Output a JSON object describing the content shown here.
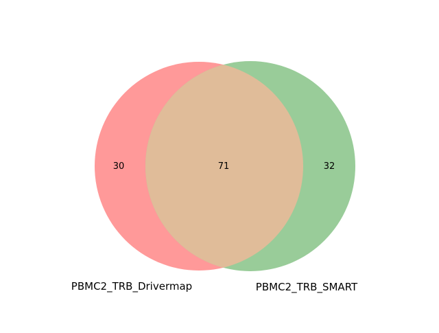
{
  "venn": {
    "sets": [
      {
        "label": "PBMC2_TRB_Drivermap",
        "color": "#ff9999"
      },
      {
        "label": "PBMC2_TRB_SMART",
        "color": "#99cc99"
      }
    ],
    "overlap_color": "#e0bc99",
    "counts": {
      "only_a": "30",
      "both": "71",
      "only_b": "32"
    }
  }
}
